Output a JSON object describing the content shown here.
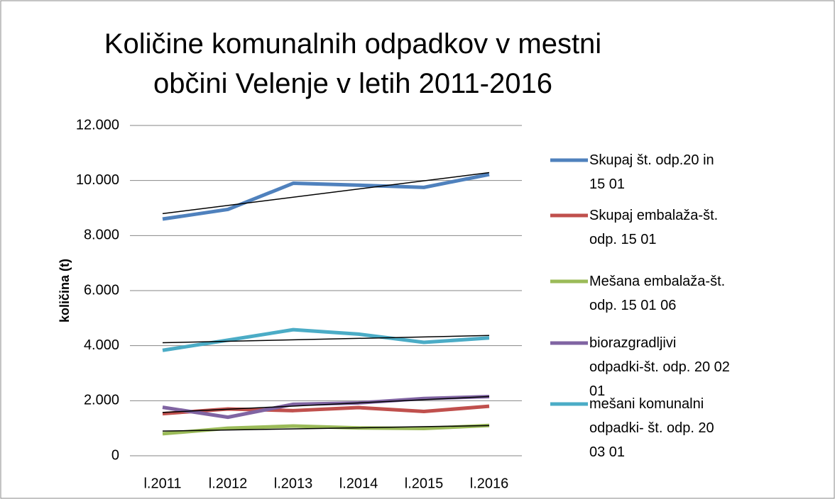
{
  "chart_data": {
    "type": "line",
    "title": "Količine komunalnih odpadkov v mestni občini Velenje v letih 2011-2016",
    "y_label": "količina  (t)",
    "categories": [
      "l.2011",
      "l.2012",
      "l.2013",
      "l.2014",
      "l.2015",
      "l.2016"
    ],
    "series": [
      {
        "name": "Skupaj št. odp.20 in 15 01",
        "color": "#4f81bd",
        "trendline": true,
        "values": [
          8600,
          8950,
          9900,
          9830,
          9750,
          10220
        ]
      },
      {
        "name": "Skupaj embalaža-št. odp. 15 01",
        "color": "#c0504d",
        "trendline": false,
        "values": [
          1530,
          1700,
          1640,
          1750,
          1610,
          1800
        ]
      },
      {
        "name": "Mešana embalaža-št. odp. 15 01 06",
        "color": "#9bbb59",
        "trendline": true,
        "values": [
          800,
          1000,
          1080,
          1010,
          990,
          1100
        ]
      },
      {
        "name": "biorazgradljivi odpadki-št. odp. 20 02 01",
        "color": "#8064a2",
        "trendline": true,
        "values": [
          1760,
          1400,
          1870,
          1920,
          2080,
          2150
        ]
      },
      {
        "name": "mešani komunalni odpadki- št. odp. 20 03 01",
        "color": "#4bacc6",
        "trendline": true,
        "values": [
          3830,
          4200,
          4580,
          4420,
          4120,
          4280
        ]
      }
    ],
    "trendline_color": "#000000",
    "ylim": [
      0,
      12000
    ],
    "yticks": [
      0,
      {
        "value": 2000,
        "label": "2.000"
      },
      {
        "value": 4000,
        "label": "4.000"
      },
      {
        "value": 6000,
        "label": "6.000"
      },
      {
        "value": 8000,
        "label": "8.000"
      },
      {
        "value": 10000,
        "label": "10.000"
      },
      {
        "value": 12000,
        "label": "12.000"
      }
    ],
    "grid": true
  }
}
